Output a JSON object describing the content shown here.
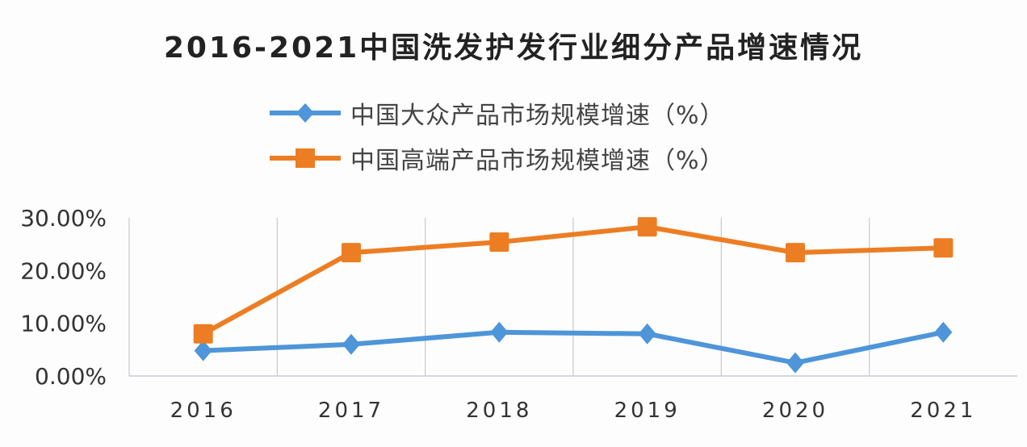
{
  "chart_data": {
    "type": "line",
    "title": "2016-2021中国洗发护发行业细分产品增速情况",
    "categories": [
      "2016",
      "2017",
      "2018",
      "2019",
      "2020",
      "2021"
    ],
    "series": [
      {
        "name": "中国大众产品市场规模增速（%）",
        "color": "#4e95d9",
        "marker": "diamond",
        "values": [
          4.8,
          6.0,
          8.3,
          8.0,
          2.5,
          8.3
        ]
      },
      {
        "name": "中国高端产品市场规模增速（%）",
        "color": "#ed7d22",
        "marker": "square",
        "values": [
          8.0,
          23.4,
          25.4,
          28.3,
          23.4,
          24.3
        ]
      }
    ],
    "ylim": [
      0,
      30
    ],
    "yticks": [
      "0.00%",
      "10.00%",
      "20.00%",
      "30.00%"
    ],
    "ytick_values": [
      0,
      10,
      20,
      30
    ],
    "legend_position": "top",
    "grid": "vertical category separators"
  }
}
